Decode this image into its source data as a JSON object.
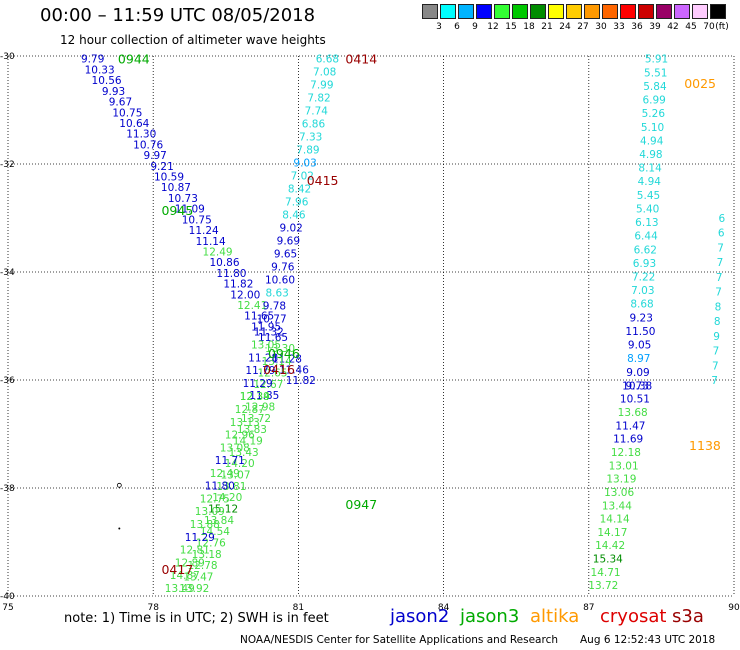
{
  "header": {
    "title": "00:00 – 11:59 UTC 08/05/2018",
    "subtitle": "12 hour collection of altimeter wave heights"
  },
  "color_scale": {
    "unit_label": "(ft)",
    "bins": [
      {
        "label": "3",
        "color": "#888888"
      },
      {
        "label": "6",
        "color": "#00ffff"
      },
      {
        "label": "9",
        "color": "#00b4ff"
      },
      {
        "label": "12",
        "color": "#0000ff"
      },
      {
        "label": "15",
        "color": "#33ff33"
      },
      {
        "label": "18",
        "color": "#00c800"
      },
      {
        "label": "21",
        "color": "#008c00"
      },
      {
        "label": "24",
        "color": "#ffff00"
      },
      {
        "label": "27",
        "color": "#ffcc00"
      },
      {
        "label": "30",
        "color": "#ff9900"
      },
      {
        "label": "33",
        "color": "#ff6600"
      },
      {
        "label": "36",
        "color": "#ff0000"
      },
      {
        "label": "39",
        "color": "#cc0000"
      },
      {
        "label": "42",
        "color": "#990066"
      },
      {
        "label": "45",
        "color": "#cc66ff"
      },
      {
        "label": "70",
        "color": "#ffccff"
      },
      {
        "label": "",
        "color": "#000000"
      }
    ]
  },
  "footer": {
    "note": "note:  1) Time is in UTC;  2) SWH is in feet",
    "credit": "NOAA/NESDIS Center for Satellite Applications and Research",
    "timestamp": "Aug  6 12:52:43 UTC 2018"
  },
  "legend": [
    {
      "name": "jason2",
      "color": "#0000cc"
    },
    {
      "name": "jason3",
      "color": "#00aa00"
    },
    {
      "name": "altika",
      "color": "#ff9900"
    },
    {
      "name": "cryosat",
      "color": "#dd0000"
    },
    {
      "name": "s3a",
      "color": "#990000"
    }
  ],
  "chart_data": {
    "type": "scatter",
    "xlim": [
      75,
      90
    ],
    "ylim": [
      -40,
      -30
    ],
    "x_ticks": [
      "75",
      "78",
      "81",
      "84",
      "87",
      "90"
    ],
    "y_ticks": [
      "-30",
      "-32",
      "-34",
      "-36",
      "-38",
      "-40"
    ],
    "grid": true,
    "track_labels": [
      {
        "text": "0944",
        "lon": 77.6,
        "lat": -30.05,
        "color": "#00aa00"
      },
      {
        "text": "0945",
        "lon": 78.5,
        "lat": -32.85,
        "color": "#00aa00"
      },
      {
        "text": "0946",
        "lon": 80.7,
        "lat": -35.5,
        "color": "#00aa00"
      },
      {
        "text": "0947",
        "lon": 82.3,
        "lat": -38.3,
        "color": "#00aa00"
      },
      {
        "text": "0414",
        "lon": 82.3,
        "lat": -30.05,
        "color": "#990000"
      },
      {
        "text": "0415",
        "lon": 81.5,
        "lat": -32.3,
        "color": "#990000"
      },
      {
        "text": "0416",
        "lon": 80.6,
        "lat": -35.8,
        "color": "#990000"
      },
      {
        "text": "0417",
        "lon": 78.5,
        "lat": -39.5,
        "color": "#990000"
      },
      {
        "text": "0025",
        "lon": 89.3,
        "lat": -30.5,
        "color": "#ff9900"
      },
      {
        "text": "1138",
        "lon": 89.4,
        "lat": -37.2,
        "color": "#ff9900"
      }
    ],
    "tracks": [
      {
        "name": "jason3",
        "lon_start": 76.75,
        "lat_start": -30.05,
        "lon_end": 81.05,
        "lat_end": -36.0,
        "values": [
          "9.79",
          "10.33",
          "10.56",
          "9.93",
          "9.67",
          "10.75",
          "10.64",
          "11.30",
          "10.76",
          "9.97",
          "9.21",
          "10.59",
          "10.87",
          "10.73",
          "11.09",
          "10.75",
          "11.24",
          "11.14",
          "12.49",
          "10.86",
          "11.80",
          "11.82",
          "12.00",
          "12.41",
          "11.65",
          "11.95",
          "11.65",
          "13.30",
          "11.28",
          "11.46",
          "11.82"
        ],
        "colors": [
          "B",
          "B",
          "B",
          "B",
          "B",
          "B",
          "B",
          "B",
          "B",
          "B",
          "B",
          "B",
          "B",
          "B",
          "B",
          "B",
          "B",
          "B",
          "G",
          "B",
          "B",
          "B",
          "B",
          "G",
          "B",
          "B",
          "B",
          "G",
          "B",
          "B",
          "B"
        ]
      },
      {
        "name": "jason3-south",
        "lon_start": 80.55,
        "lat_start": -35.65,
        "lon_end": 78.85,
        "lat_end": -39.85,
        "values": [
          "13.14",
          "12.65",
          "12.67",
          "11.85",
          "12.98",
          "13.72",
          "13.83",
          "14.19",
          "13.43",
          "14.20",
          "13.07",
          "13.81",
          "14.20",
          "15.12",
          "13.84",
          "14.54",
          "12.76",
          "13.18",
          "12.78",
          "13.47",
          "13.92"
        ],
        "colors": [
          "G",
          "G",
          "G",
          "B",
          "G",
          "G",
          "G",
          "G",
          "G",
          "G",
          "G",
          "G",
          "G",
          "D",
          "G",
          "G",
          "G",
          "G",
          "G",
          "G",
          "G"
        ]
      },
      {
        "name": "s3a",
        "lon_start": 81.6,
        "lat_start": -30.05,
        "lon_end": 80.1,
        "lat_end": -36.3,
        "values": [
          "6.68",
          "7.08",
          "7.99",
          "7.82",
          "7.74",
          "6.86",
          "7.33",
          "7.89",
          "9.03",
          "7.02",
          "8.42",
          "7.96",
          "8.46",
          "9.02",
          "9.69",
          "9.65",
          "9.76",
          "10.60",
          "8.63",
          "9.78",
          "10.77",
          "11.32",
          "13.05",
          "11.28",
          "11.79",
          "11.29",
          "12.39"
        ],
        "colors": [
          "C",
          "C",
          "C",
          "C",
          "C",
          "C",
          "C",
          "C",
          "L",
          "C",
          "C",
          "C",
          "C",
          "B",
          "B",
          "B",
          "B",
          "B",
          "C",
          "B",
          "B",
          "B",
          "G",
          "B",
          "B",
          "B",
          "G"
        ]
      },
      {
        "name": "s3a-south",
        "lon_start": 80.1,
        "lat_start": -36.3,
        "lon_end": 78.55,
        "lat_end": -39.85,
        "values": [
          "12.34",
          "12.87",
          "13.13",
          "12.96",
          "13.08",
          "11.71",
          "12.49",
          "11.80",
          "12.75",
          "13.09",
          "13.88",
          "11.29",
          "12.81",
          "12.89",
          "14.87",
          "13.49"
        ],
        "colors": [
          "G",
          "G",
          "G",
          "G",
          "G",
          "B",
          "G",
          "B",
          "G",
          "G",
          "G",
          "B",
          "G",
          "G",
          "G",
          "G"
        ]
      },
      {
        "name": "altika",
        "lon_start": 88.4,
        "lat_start": -30.05,
        "lon_end": 88.0,
        "lat_end": -36.1,
        "values": [
          "5.91",
          "5.51",
          "5.84",
          "6.99",
          "5.26",
          "5.10",
          "4.94",
          "4.98",
          "8.14",
          "4.94",
          "5.45",
          "5.40",
          "6.13",
          "6.44",
          "6.62",
          "6.93",
          "7.22",
          "7.03",
          "8.68",
          "9.23",
          "11.50",
          "9.05",
          "8.97",
          "9.09",
          "9.73"
        ],
        "colors": [
          "C",
          "C",
          "C",
          "C",
          "C",
          "C",
          "C",
          "C",
          "C",
          "C",
          "C",
          "C",
          "C",
          "C",
          "C",
          "C",
          "C",
          "C",
          "C",
          "B",
          "B",
          "B",
          "L",
          "B",
          "B"
        ]
      },
      {
        "name": "altika-south",
        "lon_start": 88.0,
        "lat_start": -36.1,
        "lon_end": 87.3,
        "lat_end": -39.8,
        "values": [
          "10.38",
          "10.51",
          "13.68",
          "11.47",
          "11.69",
          "12.18",
          "13.01",
          "13.19",
          "13.06",
          "13.44",
          "14.14",
          "14.17",
          "14.42",
          "15.34",
          "14.71",
          "13.72"
        ],
        "colors": [
          "B",
          "B",
          "G",
          "B",
          "B",
          "G",
          "G",
          "G",
          "G",
          "G",
          "G",
          "G",
          "G",
          "D",
          "G",
          "G"
        ]
      },
      {
        "name": "edge",
        "lon_start": 89.75,
        "lat_start": -33.0,
        "lon_end": 89.6,
        "lat_end": -36.0,
        "values": [
          "6",
          "6",
          "7",
          "7",
          "7",
          "7",
          "8",
          "8",
          "9",
          "7",
          "7",
          "7"
        ],
        "colors": [
          "C",
          "C",
          "C",
          "C",
          "C",
          "C",
          "C",
          "C",
          "C",
          "C",
          "C",
          "C"
        ]
      }
    ]
  }
}
